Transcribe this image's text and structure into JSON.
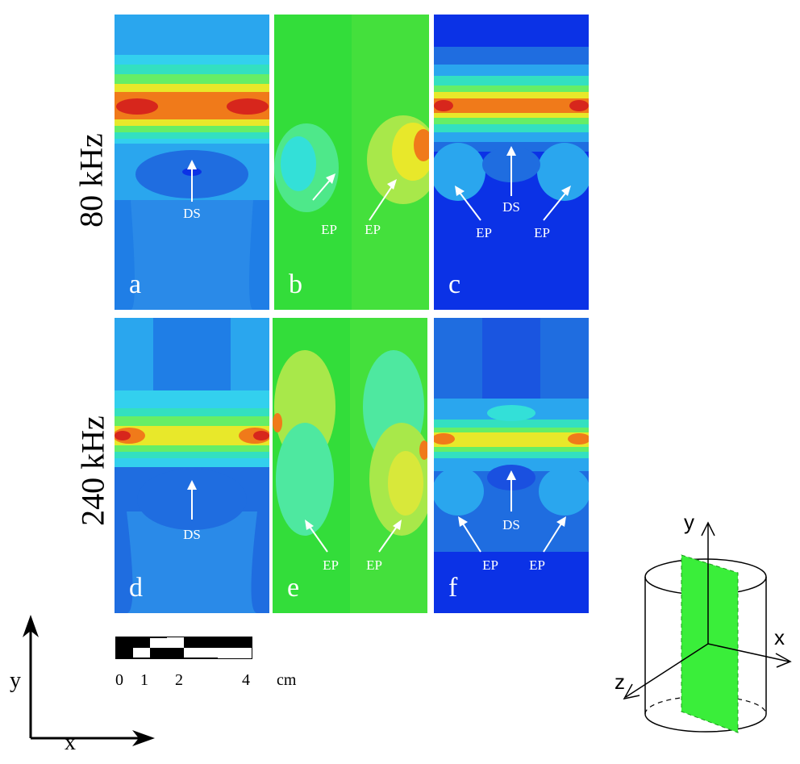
{
  "rows": [
    {
      "label": "80 kHz"
    },
    {
      "label": "240 kHz"
    }
  ],
  "panels": [
    {
      "id": "a",
      "label": "a",
      "annotations": [
        "DS"
      ]
    },
    {
      "id": "b",
      "label": "b",
      "annotations": [
        "EP",
        "EP"
      ]
    },
    {
      "id": "c",
      "label": "c",
      "annotations": [
        "DS",
        "EP",
        "EP"
      ]
    },
    {
      "id": "d",
      "label": "d",
      "annotations": [
        "DS"
      ]
    },
    {
      "id": "e",
      "label": "e",
      "annotations": [
        "EP",
        "EP"
      ]
    },
    {
      "id": "f",
      "label": "f",
      "annotations": [
        "DS",
        "EP",
        "EP"
      ]
    }
  ],
  "scale_bar": {
    "ticks": [
      "0",
      "1",
      "2",
      "4"
    ],
    "unit": "cm"
  },
  "axes_2d": {
    "x": "x",
    "y": "y"
  },
  "axes_3d": {
    "x": "x",
    "y": "y",
    "z": "z"
  },
  "colors": {
    "red": "#d7261c",
    "orange": "#f07a1a",
    "yellow": "#e8e82a",
    "green": "#33dd3a",
    "cyan": "#33e0d8",
    "lightblue": "#2aa6ee",
    "blue": "#1f6de0",
    "darkblue": "#0b32e6",
    "plane": "#3aee3a"
  }
}
